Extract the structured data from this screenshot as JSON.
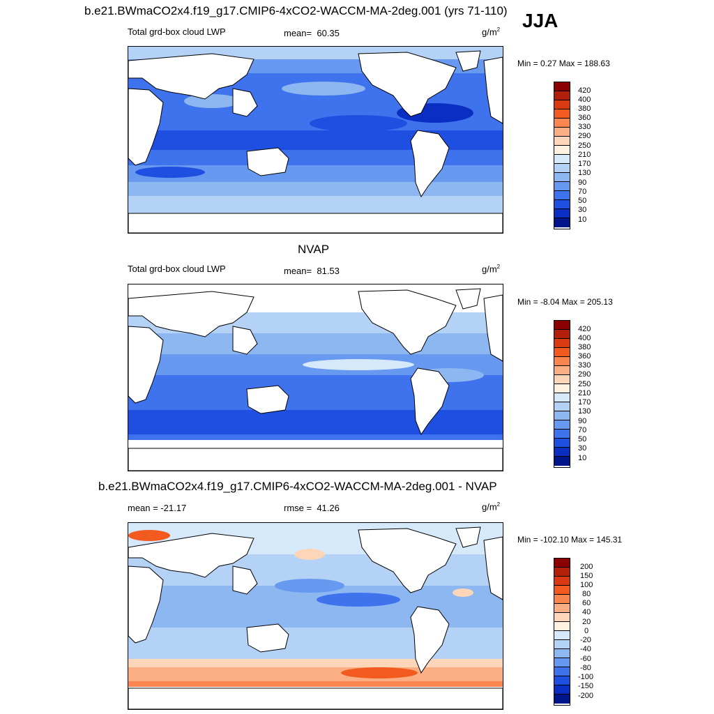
{
  "header": {
    "title_model": "b.e21.BWmaCO2x4.f19_g17.CMIP6-4xCO2-WACCM-MA-2deg.001 (yrs 71-110)",
    "season": "JJA"
  },
  "panels": [
    {
      "heading": "",
      "left_label": "Total grd-box cloud LWP",
      "stat_label": "mean=",
      "stat_value": "60.35",
      "units_base": "g/m",
      "units_exp": "2",
      "minmax_text": "Min =   0.27 Max = 188.63",
      "colorbar_labels": [
        "420",
        "400",
        "380",
        "360",
        "330",
        "290",
        "250",
        "210",
        "170",
        "130",
        "90",
        "70",
        "50",
        "30",
        "10"
      ]
    },
    {
      "heading": "NVAP",
      "left_label": "Total grd-box cloud LWP",
      "stat_label": "mean=",
      "stat_value": "81.53",
      "units_base": "g/m",
      "units_exp": "2",
      "minmax_text": "Min =  -8.04 Max = 205.13",
      "colorbar_labels": [
        "420",
        "400",
        "380",
        "360",
        "330",
        "290",
        "250",
        "210",
        "170",
        "130",
        "90",
        "70",
        "50",
        "30",
        "10"
      ]
    },
    {
      "heading": "b.e21.BWmaCO2x4.f19_g17.CMIP6-4xCO2-WACCM-MA-2deg.001 - NVAP",
      "left_label": "mean = -21.17",
      "stat_label": "rmse =",
      "stat_value": "41.26",
      "units_base": "g/m",
      "units_exp": "2",
      "minmax_text": "Min = -102.10 Max = 145.31",
      "colorbar_labels": [
        "200",
        "150",
        "100",
        "80",
        "60",
        "40",
        "20",
        "0",
        "-20",
        "-40",
        "-60",
        "-80",
        "-100",
        "-150",
        "-200"
      ]
    }
  ],
  "colors": {
    "lwp_scale": [
      "#8b0000",
      "#b2200c",
      "#d93a14",
      "#f25a1f",
      "#f98650",
      "#fbad84",
      "#fdd5b8",
      "#fff1e0",
      "#d6e9fb",
      "#b4d2f6",
      "#8db7f1",
      "#6699ef",
      "#3f73ed",
      "#1f4fe0",
      "#0a2ec2",
      "#00158a"
    ],
    "diff_scale": [
      "#8b0000",
      "#b2200c",
      "#d93a14",
      "#f25a1f",
      "#f98650",
      "#fbad84",
      "#fdd5b8",
      "#fff1e0",
      "#d6e9fb",
      "#b4d2f6",
      "#8db7f1",
      "#6699ef",
      "#3f73ed",
      "#1f4fe0",
      "#0a2ec2",
      "#00158a"
    ],
    "land": "#ffffff",
    "coast": "#000000"
  }
}
